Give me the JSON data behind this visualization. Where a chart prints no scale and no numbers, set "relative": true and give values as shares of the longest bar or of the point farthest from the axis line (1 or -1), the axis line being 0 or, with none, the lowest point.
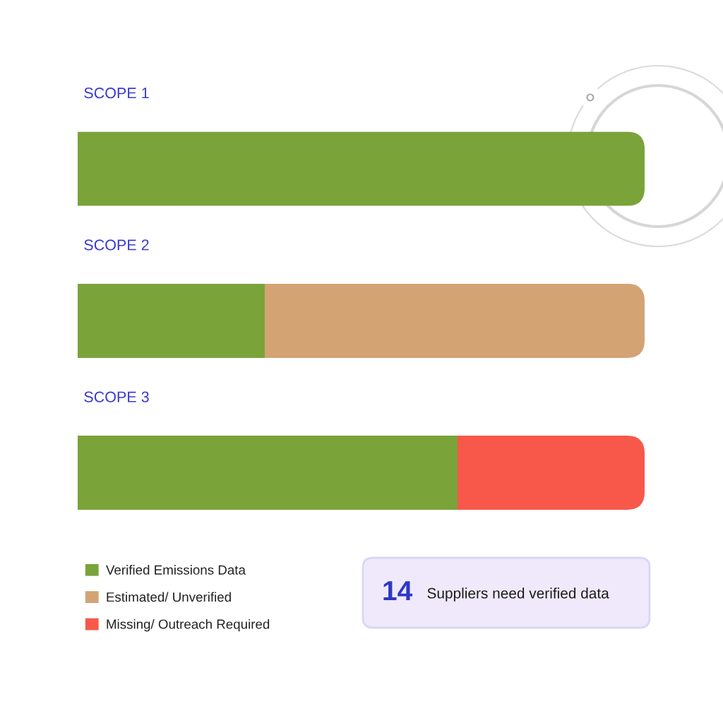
{
  "chart_data": {
    "type": "bar",
    "orientation": "horizontal",
    "stacked": true,
    "relative": true,
    "categories": [
      "SCOPE 1",
      "SCOPE 2",
      "SCOPE 3"
    ],
    "series": [
      {
        "name": "Verified Emissions Data",
        "color": "#7aa33a",
        "values": [
          1,
          0.33,
          0.67
        ]
      },
      {
        "name": "Estimated/ Unverified",
        "color": "#d3a374",
        "values": [
          null,
          0.67,
          null
        ]
      },
      {
        "name": "Missing/ Outreach Required",
        "color": "#f8584a",
        "values": [
          null,
          null,
          0.33
        ]
      }
    ],
    "legend": "bottom left",
    "annotations": [
      "14",
      "Suppliers need verified data"
    ]
  }
}
